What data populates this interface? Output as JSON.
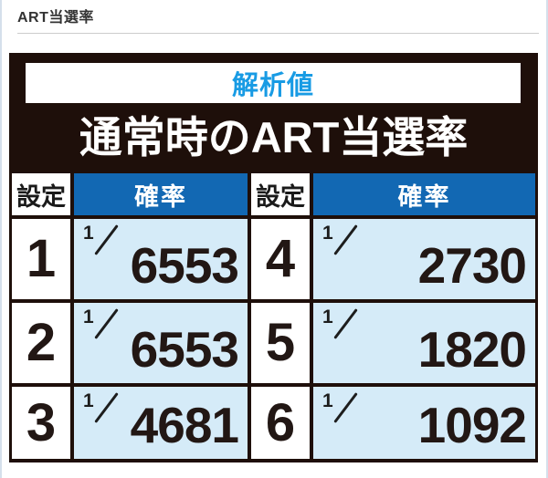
{
  "page": {
    "title": "ART当選率"
  },
  "panel": {
    "badge": "解析値",
    "title": "通常時のART当選率",
    "col_setting": "設定",
    "col_rate": "確率"
  },
  "rows": [
    {
      "l_setting": "1",
      "l_num": "1",
      "l_den": "6553",
      "r_setting": "4",
      "r_num": "1",
      "r_den": "2730"
    },
    {
      "l_setting": "2",
      "l_num": "1",
      "l_den": "6553",
      "r_setting": "5",
      "r_num": "1",
      "r_den": "1820"
    },
    {
      "l_setting": "3",
      "l_num": "1",
      "l_den": "4681",
      "r_setting": "6",
      "r_num": "1",
      "r_den": "1092"
    }
  ],
  "colors": {
    "accent_cyan": "#189be4",
    "header_blue": "#1268b3",
    "cell_light_blue": "#d5ebf8",
    "frame_dark": "#1e0f0a",
    "page_edge": "#d5e0eb"
  }
}
